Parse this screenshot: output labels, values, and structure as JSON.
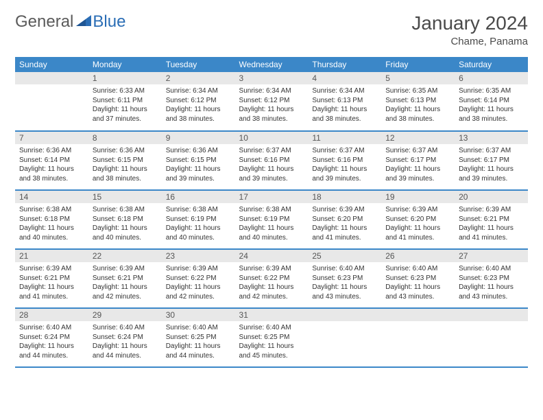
{
  "logo": {
    "general": "General",
    "blue": "Blue"
  },
  "title": "January 2024",
  "location": "Chame, Panama",
  "colors": {
    "header_bg": "#3b87c8",
    "header_text": "#ffffff",
    "daynum_bg": "#e8e8e8",
    "daynum_text": "#555555",
    "body_text": "#333333",
    "row_border": "#3b87c8",
    "logo_blue": "#2a6db5",
    "logo_gray": "#5a5a5a"
  },
  "typography": {
    "title_fontsize": 28,
    "location_fontsize": 15,
    "header_fontsize": 12,
    "daynum_fontsize": 12,
    "cell_fontsize": 10
  },
  "weekdays": [
    "Sunday",
    "Monday",
    "Tuesday",
    "Wednesday",
    "Thursday",
    "Friday",
    "Saturday"
  ],
  "weeks": [
    [
      {
        "day": "",
        "lines": [
          "",
          "",
          "",
          ""
        ]
      },
      {
        "day": "1",
        "lines": [
          "Sunrise: 6:33 AM",
          "Sunset: 6:11 PM",
          "Daylight: 11 hours",
          "and 37 minutes."
        ]
      },
      {
        "day": "2",
        "lines": [
          "Sunrise: 6:34 AM",
          "Sunset: 6:12 PM",
          "Daylight: 11 hours",
          "and 38 minutes."
        ]
      },
      {
        "day": "3",
        "lines": [
          "Sunrise: 6:34 AM",
          "Sunset: 6:12 PM",
          "Daylight: 11 hours",
          "and 38 minutes."
        ]
      },
      {
        "day": "4",
        "lines": [
          "Sunrise: 6:34 AM",
          "Sunset: 6:13 PM",
          "Daylight: 11 hours",
          "and 38 minutes."
        ]
      },
      {
        "day": "5",
        "lines": [
          "Sunrise: 6:35 AM",
          "Sunset: 6:13 PM",
          "Daylight: 11 hours",
          "and 38 minutes."
        ]
      },
      {
        "day": "6",
        "lines": [
          "Sunrise: 6:35 AM",
          "Sunset: 6:14 PM",
          "Daylight: 11 hours",
          "and 38 minutes."
        ]
      }
    ],
    [
      {
        "day": "7",
        "lines": [
          "Sunrise: 6:36 AM",
          "Sunset: 6:14 PM",
          "Daylight: 11 hours",
          "and 38 minutes."
        ]
      },
      {
        "day": "8",
        "lines": [
          "Sunrise: 6:36 AM",
          "Sunset: 6:15 PM",
          "Daylight: 11 hours",
          "and 38 minutes."
        ]
      },
      {
        "day": "9",
        "lines": [
          "Sunrise: 6:36 AM",
          "Sunset: 6:15 PM",
          "Daylight: 11 hours",
          "and 39 minutes."
        ]
      },
      {
        "day": "10",
        "lines": [
          "Sunrise: 6:37 AM",
          "Sunset: 6:16 PM",
          "Daylight: 11 hours",
          "and 39 minutes."
        ]
      },
      {
        "day": "11",
        "lines": [
          "Sunrise: 6:37 AM",
          "Sunset: 6:16 PM",
          "Daylight: 11 hours",
          "and 39 minutes."
        ]
      },
      {
        "day": "12",
        "lines": [
          "Sunrise: 6:37 AM",
          "Sunset: 6:17 PM",
          "Daylight: 11 hours",
          "and 39 minutes."
        ]
      },
      {
        "day": "13",
        "lines": [
          "Sunrise: 6:37 AM",
          "Sunset: 6:17 PM",
          "Daylight: 11 hours",
          "and 39 minutes."
        ]
      }
    ],
    [
      {
        "day": "14",
        "lines": [
          "Sunrise: 6:38 AM",
          "Sunset: 6:18 PM",
          "Daylight: 11 hours",
          "and 40 minutes."
        ]
      },
      {
        "day": "15",
        "lines": [
          "Sunrise: 6:38 AM",
          "Sunset: 6:18 PM",
          "Daylight: 11 hours",
          "and 40 minutes."
        ]
      },
      {
        "day": "16",
        "lines": [
          "Sunrise: 6:38 AM",
          "Sunset: 6:19 PM",
          "Daylight: 11 hours",
          "and 40 minutes."
        ]
      },
      {
        "day": "17",
        "lines": [
          "Sunrise: 6:38 AM",
          "Sunset: 6:19 PM",
          "Daylight: 11 hours",
          "and 40 minutes."
        ]
      },
      {
        "day": "18",
        "lines": [
          "Sunrise: 6:39 AM",
          "Sunset: 6:20 PM",
          "Daylight: 11 hours",
          "and 41 minutes."
        ]
      },
      {
        "day": "19",
        "lines": [
          "Sunrise: 6:39 AM",
          "Sunset: 6:20 PM",
          "Daylight: 11 hours",
          "and 41 minutes."
        ]
      },
      {
        "day": "20",
        "lines": [
          "Sunrise: 6:39 AM",
          "Sunset: 6:21 PM",
          "Daylight: 11 hours",
          "and 41 minutes."
        ]
      }
    ],
    [
      {
        "day": "21",
        "lines": [
          "Sunrise: 6:39 AM",
          "Sunset: 6:21 PM",
          "Daylight: 11 hours",
          "and 41 minutes."
        ]
      },
      {
        "day": "22",
        "lines": [
          "Sunrise: 6:39 AM",
          "Sunset: 6:21 PM",
          "Daylight: 11 hours",
          "and 42 minutes."
        ]
      },
      {
        "day": "23",
        "lines": [
          "Sunrise: 6:39 AM",
          "Sunset: 6:22 PM",
          "Daylight: 11 hours",
          "and 42 minutes."
        ]
      },
      {
        "day": "24",
        "lines": [
          "Sunrise: 6:39 AM",
          "Sunset: 6:22 PM",
          "Daylight: 11 hours",
          "and 42 minutes."
        ]
      },
      {
        "day": "25",
        "lines": [
          "Sunrise: 6:40 AM",
          "Sunset: 6:23 PM",
          "Daylight: 11 hours",
          "and 43 minutes."
        ]
      },
      {
        "day": "26",
        "lines": [
          "Sunrise: 6:40 AM",
          "Sunset: 6:23 PM",
          "Daylight: 11 hours",
          "and 43 minutes."
        ]
      },
      {
        "day": "27",
        "lines": [
          "Sunrise: 6:40 AM",
          "Sunset: 6:23 PM",
          "Daylight: 11 hours",
          "and 43 minutes."
        ]
      }
    ],
    [
      {
        "day": "28",
        "lines": [
          "Sunrise: 6:40 AM",
          "Sunset: 6:24 PM",
          "Daylight: 11 hours",
          "and 44 minutes."
        ]
      },
      {
        "day": "29",
        "lines": [
          "Sunrise: 6:40 AM",
          "Sunset: 6:24 PM",
          "Daylight: 11 hours",
          "and 44 minutes."
        ]
      },
      {
        "day": "30",
        "lines": [
          "Sunrise: 6:40 AM",
          "Sunset: 6:25 PM",
          "Daylight: 11 hours",
          "and 44 minutes."
        ]
      },
      {
        "day": "31",
        "lines": [
          "Sunrise: 6:40 AM",
          "Sunset: 6:25 PM",
          "Daylight: 11 hours",
          "and 45 minutes."
        ]
      },
      {
        "day": "",
        "lines": [
          "",
          "",
          "",
          ""
        ]
      },
      {
        "day": "",
        "lines": [
          "",
          "",
          "",
          ""
        ]
      },
      {
        "day": "",
        "lines": [
          "",
          "",
          "",
          ""
        ]
      }
    ]
  ]
}
